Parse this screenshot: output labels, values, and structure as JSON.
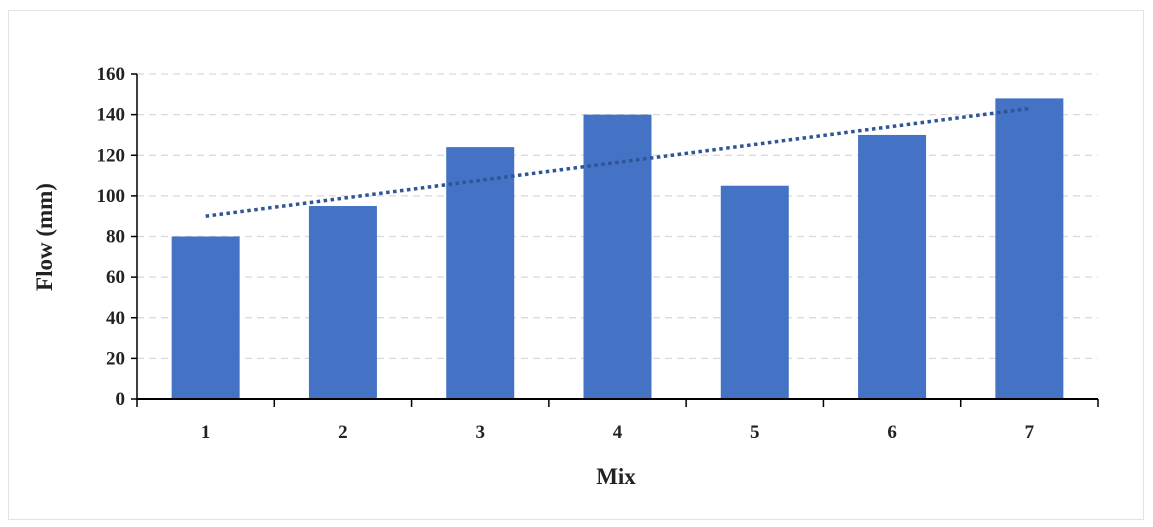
{
  "chart_data": {
    "type": "bar",
    "categories": [
      "1",
      "2",
      "3",
      "4",
      "5",
      "6",
      "7"
    ],
    "values": [
      80,
      95,
      124,
      140,
      105,
      130,
      148
    ],
    "xlabel": "Mix",
    "ylabel": "Flow (mm)",
    "ylim": [
      0,
      160
    ],
    "yticks": [
      0,
      20,
      40,
      60,
      80,
      100,
      120,
      140,
      160
    ],
    "grid": true,
    "trendline": {
      "type": "linear",
      "style": "dotted",
      "start": 90,
      "end": 143
    },
    "colors": {
      "bar": "#4472C4",
      "trendline": "#2F5597",
      "grid": "#d9d9d9",
      "axis": "#000000"
    }
  }
}
